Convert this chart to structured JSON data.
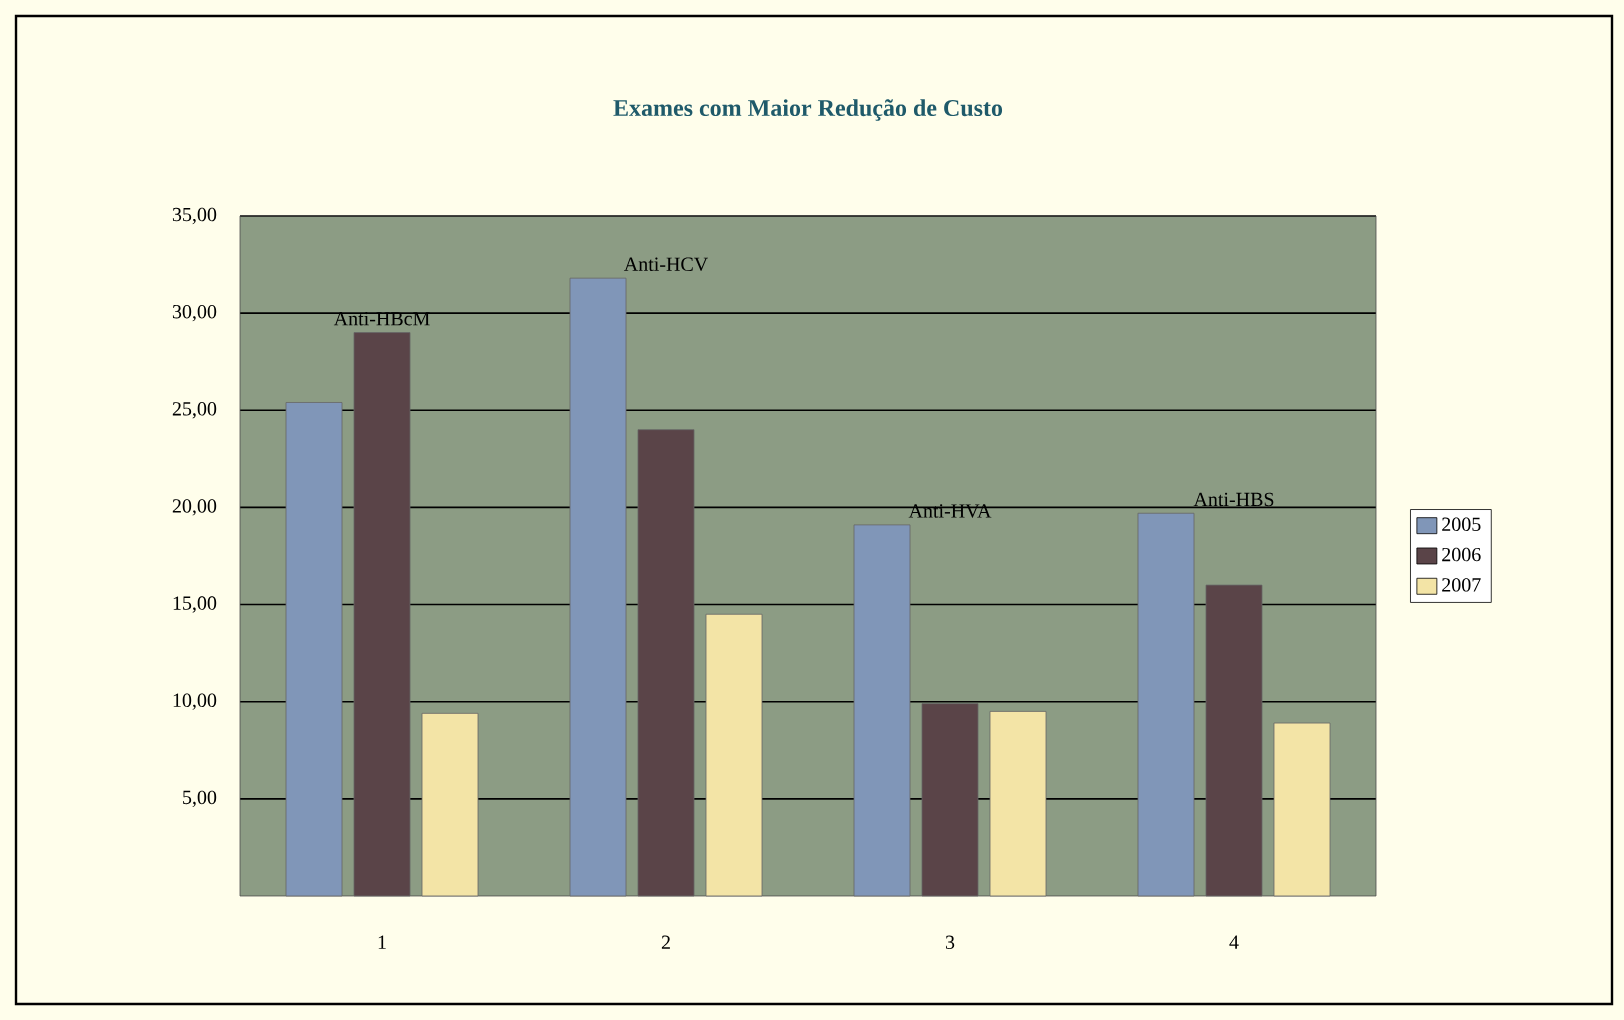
{
  "chart_data": {
    "type": "bar",
    "title": "Exames com Maior Redução de Custo",
    "categories": [
      "1",
      "2",
      "3",
      "4"
    ],
    "series": [
      {
        "name": "2005",
        "color": "#8096b8",
        "values": [
          25.4,
          31.8,
          19.1,
          19.7
        ]
      },
      {
        "name": "2006",
        "color": "#5a4448",
        "values": [
          29.0,
          24.0,
          9.9,
          16.0
        ]
      },
      {
        "name": "2007",
        "color": "#f3e4a6",
        "values": [
          9.4,
          14.5,
          9.5,
          8.9
        ]
      }
    ],
    "ylim": [
      0,
      35
    ],
    "yticks": [
      {
        "value": 5,
        "label": "5,00"
      },
      {
        "value": 10,
        "label": "10,00"
      },
      {
        "value": 15,
        "label": "15,00"
      },
      {
        "value": 20,
        "label": "20,00"
      },
      {
        "value": 25,
        "label": "25,00"
      },
      {
        "value": 30,
        "label": "30,00"
      },
      {
        "value": 35,
        "label": "35,00"
      }
    ],
    "annotations": [
      "Anti-HBcM",
      "Anti-HCV",
      "Anti-HVA",
      "Anti-HBS"
    ],
    "grid": "y",
    "legend": "right"
  }
}
